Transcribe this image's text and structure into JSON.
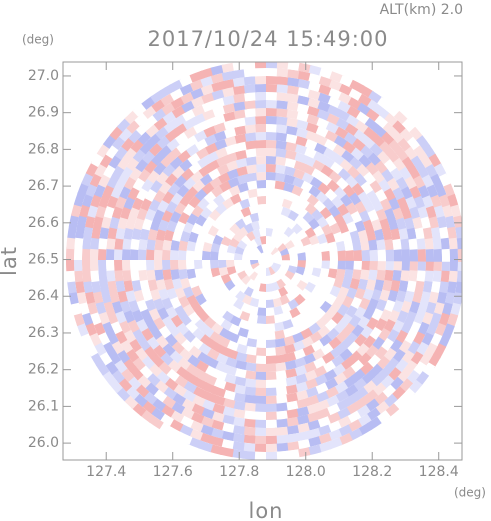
{
  "chart_data": {
    "type": "radar-field",
    "title": "2017/10/24 15:49:00",
    "subtitle": "ALT(km) 2.0",
    "x_label": "lon",
    "x_unit": "(deg)",
    "y_label": "lat",
    "y_unit": "(deg)",
    "xlim": [
      127.27,
      128.47
    ],
    "ylim": [
      25.954,
      27.038
    ],
    "xticks": [
      127.4,
      127.6,
      127.8,
      {
        "value": 128,
        "label": "128.0"
      },
      128.2,
      128.4
    ],
    "yticks": [
      {
        "value": 26,
        "label": "26.0"
      },
      26.1,
      26.2,
      26.3,
      26.4,
      26.5,
      26.6,
      26.7,
      26.8,
      26.9,
      {
        "value": 27,
        "label": "27.0"
      }
    ]
  }
}
